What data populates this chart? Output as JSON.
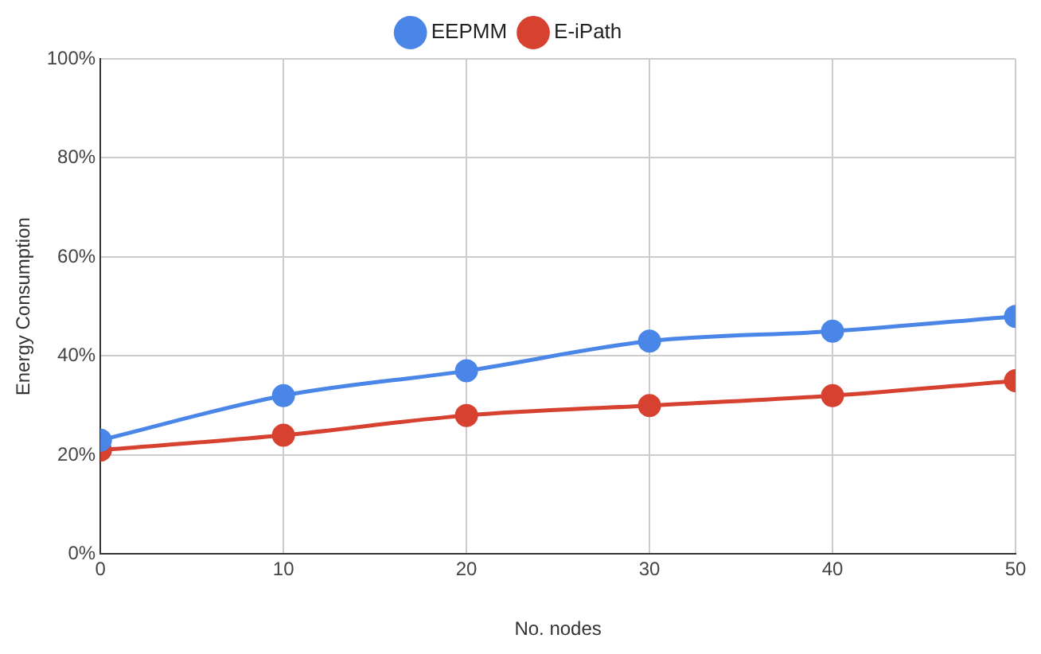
{
  "chart_data": {
    "type": "line",
    "xlabel": "No. nodes",
    "ylabel": "Energy Consumption",
    "x": [
      0,
      10,
      20,
      30,
      40,
      50
    ],
    "series": [
      {
        "name": "EEPMM",
        "color": "#4a86e8",
        "values": [
          23,
          32,
          37,
          43,
          45,
          48
        ]
      },
      {
        "name": "E-iPath",
        "color": "#d7412f",
        "values": [
          21,
          24,
          28,
          30,
          32,
          35
        ]
      }
    ],
    "xlim": [
      0,
      50
    ],
    "xticks": [
      0,
      10,
      20,
      30,
      40,
      50
    ],
    "ylim": [
      0,
      100
    ],
    "yticks": [
      {
        "value": 0,
        "label": "0%"
      },
      {
        "value": 20,
        "label": "20%"
      },
      {
        "value": 40,
        "label": "40%"
      },
      {
        "value": 60,
        "label": "60%"
      },
      {
        "value": 80,
        "label": "80%"
      },
      {
        "value": 100,
        "label": "100%"
      }
    ],
    "grid": true,
    "legend": "top",
    "marker": "circle",
    "line_style": "solid"
  }
}
